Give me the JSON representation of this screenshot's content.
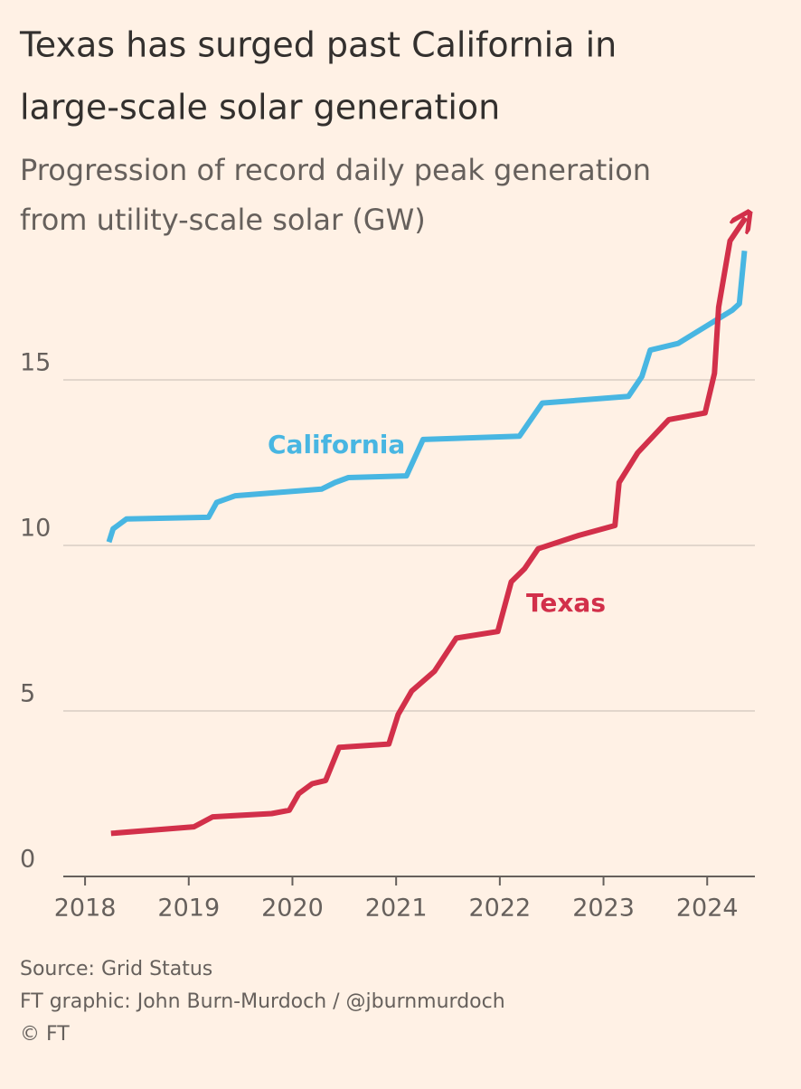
{
  "chart_data": {
    "type": "line",
    "title": [
      "Texas has surged past California in",
      "large-scale solar generation"
    ],
    "subtitle": [
      "Progression of record daily peak generation",
      "from utility-scale solar (GW)"
    ],
    "series": [
      {
        "name": "California",
        "color": "#48b6e2",
        "x": [
          2018.23,
          2018.27,
          2018.4,
          2019.19,
          2019.27,
          2019.45,
          2020.28,
          2020.41,
          2020.54,
          2021.1,
          2021.26,
          2022.19,
          2022.41,
          2023.24,
          2023.37,
          2023.45,
          2023.72,
          2024.24,
          2024.31,
          2024.36
        ],
        "values": [
          10.1,
          10.5,
          10.8,
          10.85,
          11.3,
          11.5,
          11.7,
          11.9,
          12.05,
          12.1,
          13.2,
          13.3,
          14.3,
          14.5,
          15.1,
          15.9,
          16.1,
          17.1,
          17.3,
          18.9
        ]
      },
      {
        "name": "Texas",
        "color": "#d2304a",
        "x": [
          2018.25,
          2019.05,
          2019.23,
          2019.8,
          2019.97,
          2020.06,
          2020.19,
          2020.32,
          2020.45,
          2020.93,
          2021.02,
          2021.15,
          2021.37,
          2021.58,
          2021.98,
          2022.11,
          2022.24,
          2022.37,
          2022.76,
          2023.11,
          2023.15,
          2023.33,
          2023.63,
          2023.98,
          2024.07,
          2024.11,
          2024.22,
          2024.37
        ],
        "values": [
          1.3,
          1.5,
          1.8,
          1.9,
          2.0,
          2.5,
          2.8,
          2.9,
          3.9,
          4.0,
          4.9,
          5.6,
          6.2,
          7.2,
          7.4,
          8.9,
          9.3,
          9.9,
          10.3,
          10.6,
          11.9,
          12.8,
          13.8,
          14.0,
          15.2,
          17.2,
          19.2,
          19.9
        ]
      }
    ],
    "xlim": [
      2017.79,
      2024.46
    ],
    "xticks": [
      2018,
      2019,
      2020,
      2021,
      2022,
      2023,
      2024
    ],
    "ylim": [
      0,
      20.5
    ],
    "yticks": [
      0,
      5,
      10,
      15
    ],
    "grid": true,
    "footer": [
      "Source: Grid Status",
      "FT graphic: John Burn-Murdoch / @jburnmurdoch",
      "© FT"
    ]
  }
}
